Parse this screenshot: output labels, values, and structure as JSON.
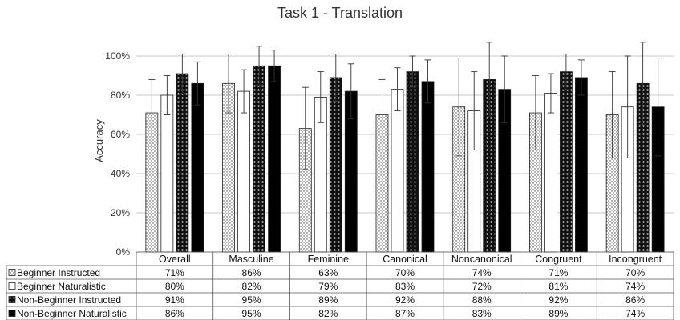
{
  "chart_data": {
    "type": "bar",
    "title": "Task 1 - Translation",
    "ylabel": "Accuracy",
    "xlabel": "",
    "ylim": [
      0,
      100
    ],
    "yticks": [
      "0%",
      "20%",
      "40%",
      "60%",
      "80%",
      "100%"
    ],
    "grid": true,
    "legend_position": "data table below chart",
    "categories": [
      "Overall",
      "Masculine",
      "Feminine",
      "Canonical",
      "Noncanonical",
      "Congruent",
      "Incongruent"
    ],
    "series": [
      {
        "name": "Beginner Instructed",
        "pattern": "dots-light",
        "values": [
          71,
          86,
          63,
          70,
          74,
          71,
          70
        ],
        "labels": [
          "71%",
          "86%",
          "63%",
          "70%",
          "74%",
          "71%",
          "70%"
        ],
        "error": [
          17,
          15,
          21,
          18,
          25,
          19,
          22
        ]
      },
      {
        "name": "Beginner Naturalistic",
        "pattern": "white",
        "values": [
          80,
          82,
          79,
          83,
          72,
          81,
          74
        ],
        "labels": [
          "80%",
          "82%",
          "79%",
          "83%",
          "72%",
          "81%",
          "74%"
        ],
        "error": [
          10,
          11,
          13,
          11,
          20,
          10,
          26
        ]
      },
      {
        "name": "Non-Beginner Instructed",
        "pattern": "dots-dark",
        "values": [
          91,
          95,
          89,
          92,
          88,
          92,
          86
        ],
        "labels": [
          "91%",
          "95%",
          "89%",
          "92%",
          "88%",
          "92%",
          "86%"
        ],
        "error": [
          10,
          10,
          12,
          8,
          19,
          9,
          21
        ]
      },
      {
        "name": "Non-Beginner Naturalistic",
        "pattern": "black",
        "values": [
          86,
          95,
          82,
          87,
          83,
          89,
          74
        ],
        "labels": [
          "86%",
          "95%",
          "82%",
          "87%",
          "83%",
          "89%",
          "74%"
        ],
        "error": [
          11,
          8,
          14,
          11,
          17,
          9,
          25
        ]
      }
    ],
    "colors": {
      "grid": "#c8c8c8",
      "dark": "#000000",
      "border": "#555555"
    }
  }
}
